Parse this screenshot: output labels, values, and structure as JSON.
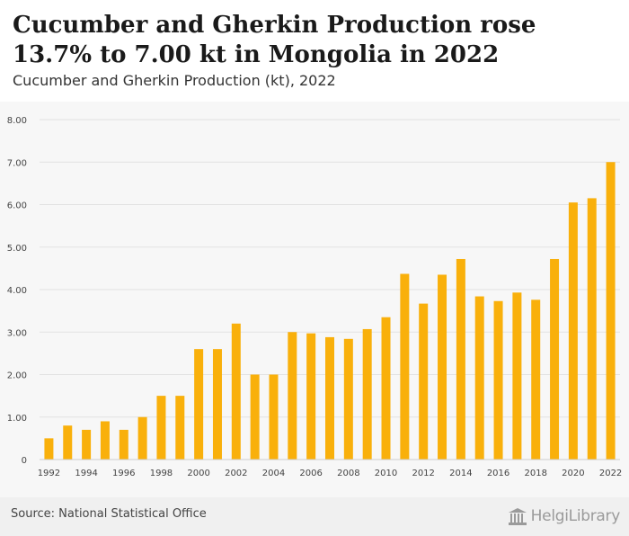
{
  "header": {
    "title": "Cucumber and Gherkin Production rose 13.7% to 7.00 kt in Mongolia in 2022",
    "subtitle": "Cucumber and Gherkin Production (kt), 2022"
  },
  "footer": {
    "source": "Source: National Statistical Office",
    "logo_text": "HelgiLibrary"
  },
  "colors": {
    "bar": "#F9B00B",
    "grid": "#e2e2e2",
    "axis_text": "#444444",
    "chart_bg": "#f7f7f7",
    "footer_bg": "#f0f0f0"
  },
  "chart_data": {
    "type": "bar",
    "title": "Cucumber and Gherkin Production (kt), 2022",
    "xlabel": "",
    "ylabel": "",
    "ylim": [
      0,
      8
    ],
    "grid": true,
    "y_ticks": [
      "0",
      "1.00",
      "2.00",
      "3.00",
      "4.00",
      "5.00",
      "6.00",
      "7.00",
      "8.00"
    ],
    "x_tick_labels": [
      "1992",
      "1994",
      "1996",
      "1998",
      "2000",
      "2002",
      "2004",
      "2006",
      "2008",
      "2010",
      "2012",
      "2014",
      "2016",
      "2018",
      "2020",
      "2022"
    ],
    "categories": [
      "1992",
      "1993",
      "1994",
      "1995",
      "1996",
      "1997",
      "1998",
      "1999",
      "2000",
      "2001",
      "2002",
      "2003",
      "2004",
      "2005",
      "2006",
      "2007",
      "2008",
      "2009",
      "2010",
      "2011",
      "2012",
      "2013",
      "2014",
      "2015",
      "2016",
      "2017",
      "2018",
      "2019",
      "2020",
      "2021",
      "2022"
    ],
    "values": [
      0.5,
      0.8,
      0.7,
      0.9,
      0.7,
      1.0,
      1.5,
      1.5,
      2.6,
      2.6,
      3.2,
      2.0,
      2.0,
      3.0,
      2.97,
      2.88,
      2.84,
      3.07,
      3.35,
      4.37,
      3.67,
      4.35,
      4.72,
      3.84,
      3.73,
      3.93,
      3.76,
      4.72,
      6.05,
      6.15,
      7.0
    ]
  }
}
